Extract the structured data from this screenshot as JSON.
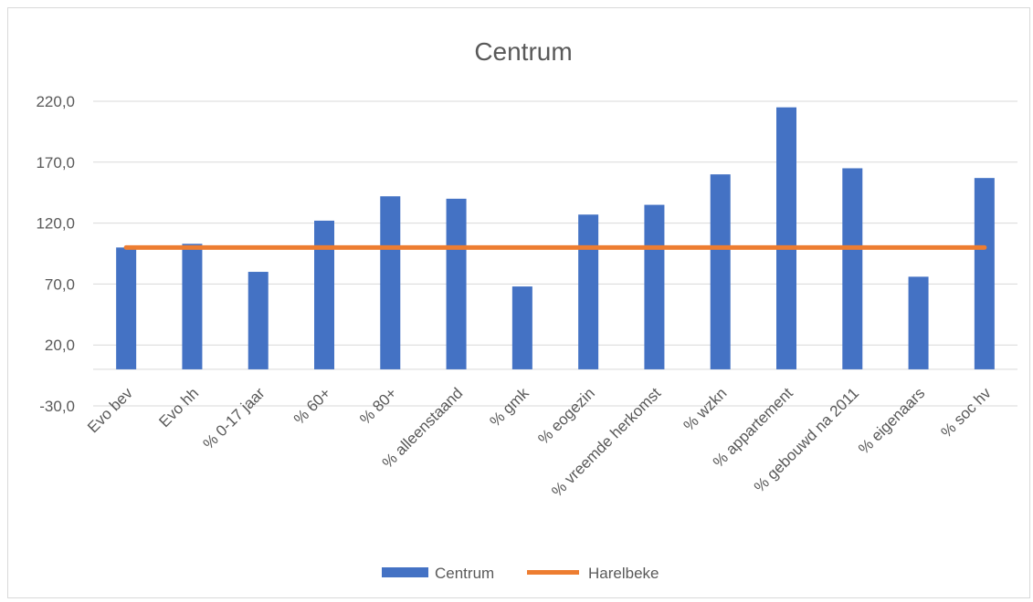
{
  "chart_data": {
    "type": "bar",
    "title": "Centrum",
    "categories": [
      "Evo bev",
      "Evo hh",
      "% 0-17 jaar",
      "% 60+",
      "% 80+",
      "% alleenstaand",
      "% gmk",
      "% eogezin",
      "% vreemde herkomst",
      "% wzkn",
      "% appartement",
      "% gebouwd na 2011",
      "% eigenaars",
      "% soc hv"
    ],
    "series": [
      {
        "name": "Centrum",
        "type": "bar",
        "color": "#4472C4",
        "values": [
          100,
          103,
          80,
          122,
          142,
          140,
          68,
          127,
          135,
          160,
          215,
          165,
          76,
          157
        ]
      },
      {
        "name": "Harelbeke",
        "type": "line",
        "color": "#ED7D31",
        "values": [
          100,
          100,
          100,
          100,
          100,
          100,
          100,
          100,
          100,
          100,
          100,
          100,
          100,
          100
        ]
      }
    ],
    "yticks": [
      "-30,0",
      "20,0",
      "70,0",
      "120,0",
      "170,0",
      "220,0"
    ],
    "ylim": [
      -30,
      220
    ],
    "grid": true,
    "legend": "bottom"
  }
}
